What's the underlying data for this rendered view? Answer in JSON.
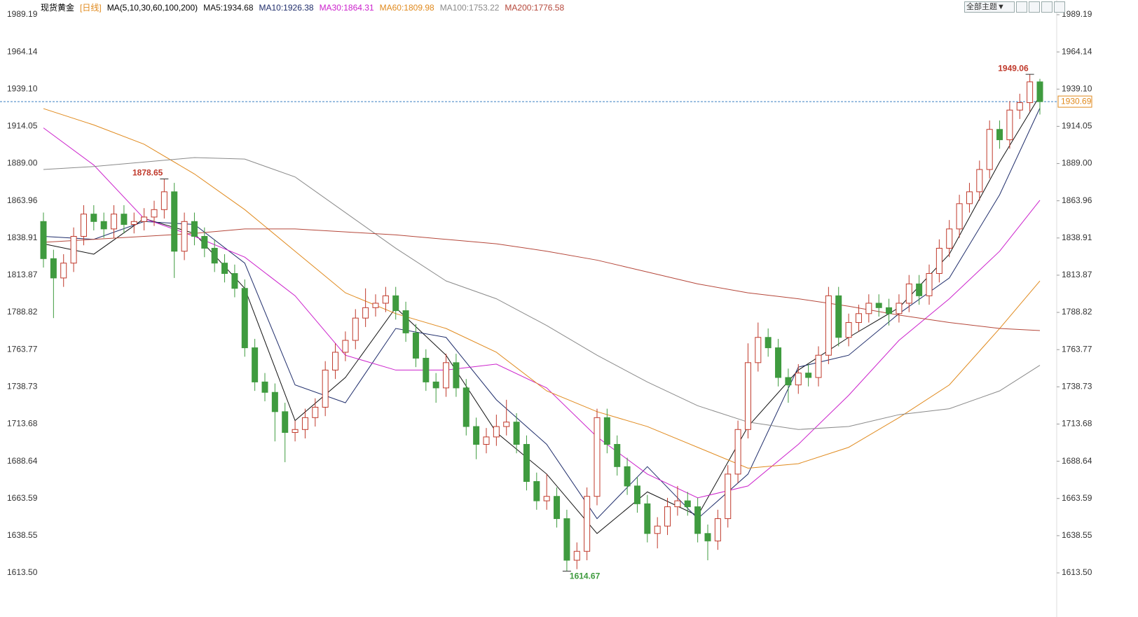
{
  "chart_data": {
    "type": "candlestick",
    "title": "现货黄金",
    "period": "[日线]",
    "ma_label": "MA(5,10,30,60,100,200)",
    "theme_button": "全部主题▼",
    "ylim": [
      1613.5,
      1989.19
    ],
    "yticks": [
      {
        "value": 1613.5,
        "label": "1613.50"
      },
      1638.55,
      1663.59,
      1688.64,
      1713.68,
      1738.73,
      1763.77,
      1788.82,
      1813.87,
      1838.91,
      1863.96,
      {
        "value": 1889,
        "label": "1889.00"
      },
      1914.05,
      {
        "value": 1939.1,
        "label": "1939.10"
      },
      1964.14,
      1989.19
    ],
    "up_color": "#c0392b",
    "down_color": "#3f9b3f",
    "open": [
      1850,
      1825,
      1812,
      1822,
      1840,
      1855,
      1850,
      1845,
      1855,
      1848,
      1850,
      1853,
      1858,
      1870,
      1830,
      1850,
      1840,
      1832,
      1822,
      1815,
      1805,
      1765,
      1742,
      1735,
      1722,
      1708,
      1710,
      1718,
      1725,
      1750,
      1762,
      1770,
      1785,
      1792,
      1795,
      1800,
      1790,
      1775,
      1758,
      1742,
      1738,
      1755,
      1738,
      1712,
      1700,
      1705,
      1712,
      1715,
      1700,
      1675,
      1662,
      1665,
      1650,
      1622,
      1628,
      1665,
      1718,
      1700,
      1685,
      1672,
      1660,
      1640,
      1645,
      1658,
      1662,
      1658,
      1640,
      1635,
      1650,
      1680,
      1710,
      1755,
      1772,
      1765,
      1745,
      1740,
      1748,
      1745,
      1760,
      1800,
      1772,
      1782,
      1788,
      1795,
      1792,
      1788,
      1795,
      1808,
      1800,
      1815,
      1832,
      1845,
      1862,
      1870,
      1885,
      1912,
      1905,
      1925,
      1930,
      1944
    ],
    "high": [
      1856,
      1831,
      1828,
      1846,
      1861,
      1861,
      1856,
      1861,
      1861,
      1856,
      1859,
      1864,
      1878.65,
      1876,
      1856,
      1856,
      1846,
      1838,
      1828,
      1821,
      1811,
      1771,
      1748,
      1741,
      1728,
      1716,
      1724,
      1731,
      1756,
      1768,
      1776,
      1791,
      1805,
      1801,
      1806,
      1806,
      1796,
      1781,
      1764,
      1748,
      1761,
      1761,
      1744,
      1718,
      1711,
      1720,
      1730,
      1721,
      1706,
      1681,
      1680,
      1671,
      1656,
      1634,
      1671,
      1724,
      1724,
      1706,
      1691,
      1678,
      1666,
      1651,
      1664,
      1672,
      1668,
      1664,
      1646,
      1656,
      1686,
      1716,
      1768,
      1782,
      1778,
      1771,
      1751,
      1754,
      1754,
      1766,
      1806,
      1806,
      1788,
      1794,
      1801,
      1801,
      1798,
      1801,
      1814,
      1814,
      1821,
      1838,
      1851,
      1868,
      1876,
      1891,
      1918,
      1918,
      1931,
      1936,
      1949.06,
      1946
    ],
    "low": [
      1819,
      1785,
      1806,
      1816,
      1834,
      1844,
      1839,
      1839,
      1842,
      1842,
      1844,
      1847,
      1852,
      1812,
      1824,
      1834,
      1826,
      1816,
      1809,
      1799,
      1759,
      1736,
      1729,
      1702,
      1688,
      1702,
      1704,
      1712,
      1719,
      1744,
      1756,
      1764,
      1779,
      1786,
      1789,
      1784,
      1769,
      1752,
      1736,
      1728,
      1732,
      1732,
      1706,
      1690,
      1694,
      1699,
      1706,
      1694,
      1669,
      1656,
      1656,
      1644,
      1614.67,
      1616,
      1622,
      1659,
      1694,
      1679,
      1666,
      1654,
      1634,
      1630,
      1639,
      1652,
      1652,
      1634,
      1622,
      1629,
      1644,
      1674,
      1704,
      1749,
      1759,
      1739,
      1728,
      1734,
      1739,
      1739,
      1754,
      1766,
      1766,
      1776,
      1782,
      1786,
      1780,
      1782,
      1789,
      1794,
      1794,
      1809,
      1826,
      1839,
      1856,
      1864,
      1879,
      1899,
      1899,
      1919,
      1924,
      1922
    ],
    "close": [
      1825,
      1812,
      1822,
      1840,
      1855,
      1850,
      1845,
      1855,
      1848,
      1850,
      1853,
      1858,
      1870,
      1830,
      1850,
      1840,
      1832,
      1822,
      1815,
      1805,
      1765,
      1742,
      1735,
      1722,
      1708,
      1710,
      1718,
      1725,
      1750,
      1762,
      1770,
      1785,
      1792,
      1795,
      1800,
      1790,
      1775,
      1758,
      1742,
      1738,
      1755,
      1738,
      1712,
      1700,
      1705,
      1712,
      1715,
      1700,
      1675,
      1662,
      1665,
      1650,
      1622,
      1628,
      1665,
      1718,
      1700,
      1685,
      1672,
      1660,
      1640,
      1645,
      1658,
      1662,
      1658,
      1640,
      1635,
      1650,
      1680,
      1710,
      1755,
      1772,
      1765,
      1745,
      1740,
      1748,
      1745,
      1760,
      1800,
      1772,
      1782,
      1788,
      1795,
      1792,
      1788,
      1795,
      1808,
      1800,
      1815,
      1832,
      1845,
      1862,
      1870,
      1885,
      1912,
      1905,
      1925,
      1930,
      1944,
      1930.69
    ],
    "annotations": [
      {
        "x": 12,
        "label": "1878.65"
      },
      {
        "x": 52,
        "label": "1614.67"
      },
      {
        "x": 98,
        "label": "1949.06"
      }
    ],
    "series": [
      {
        "name": "MA5:1934.68",
        "color": "#111111",
        "x": [
          0,
          5,
          10,
          15,
          20,
          25,
          30,
          35,
          40,
          45,
          50,
          55,
          60,
          65,
          70,
          75,
          80,
          85,
          90,
          95,
          99
        ],
        "values": [
          1835,
          1828,
          1852,
          1842,
          1805,
          1716,
          1745,
          1792,
          1760,
          1708,
          1680,
          1640,
          1668,
          1652,
          1712,
          1750,
          1772,
          1792,
          1828,
          1890,
          1934.68
        ]
      },
      {
        "name": "MA10:1926.38",
        "color": "#1f2d6b",
        "x": [
          0,
          5,
          10,
          15,
          20,
          25,
          30,
          35,
          40,
          45,
          50,
          55,
          60,
          65,
          70,
          75,
          80,
          85,
          90,
          95,
          99
        ],
        "values": [
          1840,
          1838,
          1850,
          1848,
          1822,
          1740,
          1728,
          1778,
          1772,
          1730,
          1700,
          1650,
          1685,
          1650,
          1680,
          1752,
          1760,
          1788,
          1812,
          1868,
          1926.38
        ]
      },
      {
        "name": "MA30:1864.31",
        "color": "#cc22cc",
        "x": [
          0,
          5,
          10,
          15,
          20,
          25,
          30,
          35,
          40,
          45,
          50,
          55,
          60,
          65,
          70,
          75,
          80,
          85,
          90,
          95,
          99
        ],
        "values": [
          1913,
          1888,
          1852,
          1840,
          1826,
          1800,
          1760,
          1750,
          1750,
          1754,
          1738,
          1705,
          1680,
          1664,
          1672,
          1700,
          1733,
          1770,
          1798,
          1830,
          1864.31
        ]
      },
      {
        "name": "MA60:1809.98",
        "color": "#e08a1e",
        "x": [
          0,
          5,
          10,
          15,
          20,
          25,
          30,
          35,
          40,
          45,
          50,
          55,
          60,
          65,
          70,
          75,
          80,
          85,
          90,
          95,
          99
        ],
        "values": [
          1926,
          1915,
          1902,
          1882,
          1858,
          1830,
          1802,
          1788,
          1778,
          1762,
          1736,
          1722,
          1712,
          1698,
          1684,
          1687,
          1698,
          1718,
          1740,
          1778,
          1809.98
        ]
      },
      {
        "name": "MA100:1753.22",
        "color": "#8a8a8a",
        "x": [
          0,
          5,
          10,
          15,
          20,
          25,
          30,
          35,
          40,
          45,
          50,
          55,
          60,
          65,
          70,
          75,
          80,
          85,
          90,
          95,
          99
        ],
        "values": [
          1885,
          1887,
          1890,
          1893,
          1892,
          1880,
          1856,
          1832,
          1810,
          1798,
          1780,
          1760,
          1742,
          1726,
          1715,
          1710,
          1712,
          1720,
          1724,
          1736,
          1753.22
        ]
      },
      {
        "name": "MA200:1776.58",
        "color": "#b5473a",
        "x": [
          0,
          5,
          10,
          15,
          20,
          25,
          30,
          35,
          40,
          45,
          50,
          55,
          60,
          65,
          70,
          75,
          80,
          85,
          90,
          95,
          99
        ],
        "values": [
          1836,
          1838,
          1840,
          1842,
          1845,
          1845,
          1843,
          1841,
          1838,
          1835,
          1830,
          1824,
          1816,
          1808,
          1802,
          1798,
          1793,
          1787,
          1782,
          1778,
          1776.58
        ]
      }
    ]
  }
}
